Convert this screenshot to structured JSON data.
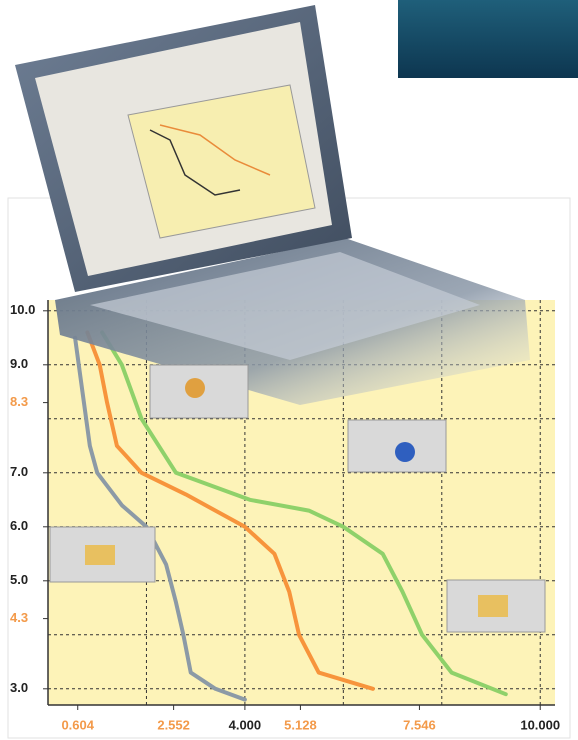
{
  "chart_data": {
    "type": "line",
    "xlim": [
      0,
      10.3
    ],
    "ylim": [
      2.7,
      10.2
    ],
    "xticks": [
      0.604,
      2.552,
      {
        "value": 4,
        "label": "4.000"
      },
      5.128,
      7.546,
      {
        "value": 10,
        "label": "10.000"
      }
    ],
    "xtick_colors": [
      "#f39a4a",
      "#f39a4a",
      "#222222",
      "#f39a4a",
      "#f39a4a",
      "#222222"
    ],
    "yticks": [
      {
        "value": 10,
        "label": "10.0"
      },
      {
        "value": 9,
        "label": "9.0"
      },
      8.3,
      {
        "value": 7,
        "label": "7.0"
      },
      {
        "value": 6,
        "label": "6.0"
      },
      {
        "value": 5,
        "label": "5.0"
      },
      4.3,
      {
        "value": 3,
        "label": "3.0"
      }
    ],
    "ytick_colors": [
      "#222222",
      "#222222",
      "#f39a4a",
      "#222222",
      "#222222",
      "#222222",
      "#f39a4a",
      "#222222"
    ],
    "xgrid": [
      2,
      4,
      6,
      8,
      10
    ],
    "ygrid": [
      3,
      4,
      5,
      6,
      7,
      8,
      9,
      10
    ],
    "grid": true,
    "series": [
      {
        "color": "#8c9aa6",
        "x": [
          0.55,
          0.7,
          0.85,
          1.0,
          1.5,
          2.0,
          2.4,
          2.6,
          2.75,
          2.9,
          3.4,
          4.0
        ],
        "values": [
          9.5,
          8.5,
          7.5,
          7.0,
          6.4,
          6.0,
          5.3,
          4.6,
          4.0,
          3.3,
          3.0,
          2.8
        ]
      },
      {
        "color": "#f7943c",
        "x": [
          0.8,
          1.05,
          1.2,
          1.4,
          1.9,
          2.8,
          4.0,
          4.6,
          4.9,
          5.1,
          5.5,
          6.6
        ],
        "values": [
          9.6,
          9.0,
          8.3,
          7.5,
          7.0,
          6.6,
          6.0,
          5.5,
          4.8,
          4.0,
          3.3,
          3.0
        ]
      },
      {
        "color": "#8fd16a",
        "x": [
          1.1,
          1.5,
          1.9,
          2.6,
          4.1,
          5.3,
          6.0,
          6.8,
          7.2,
          7.6,
          8.2,
          9.3
        ],
        "values": [
          9.6,
          9.0,
          8.0,
          7.0,
          6.5,
          6.3,
          6.0,
          5.5,
          4.8,
          4.0,
          3.3,
          2.9
        ]
      }
    ]
  }
}
